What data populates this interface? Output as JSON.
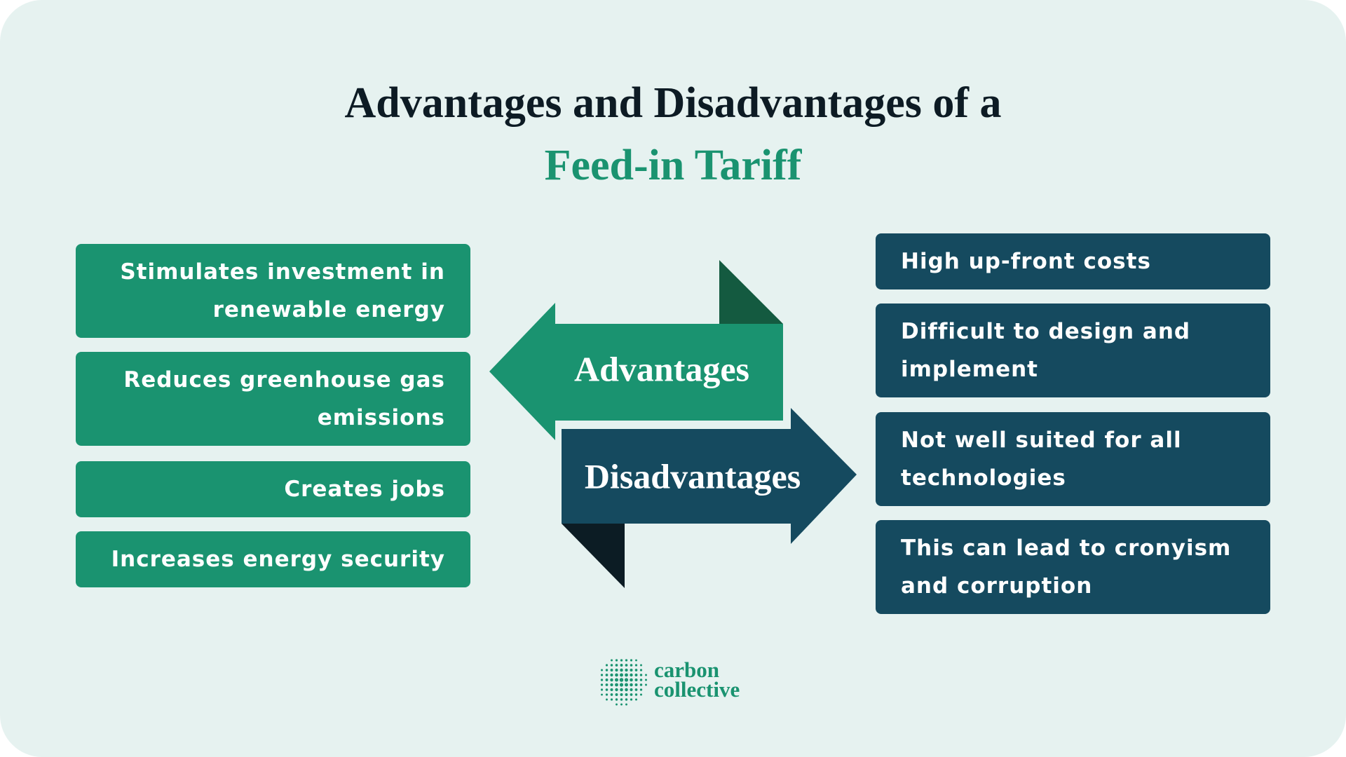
{
  "header": {
    "title": "Advantages and Disadvantages of a",
    "subtitle": "Feed-in Tariff"
  },
  "advantages": {
    "label": "Advantages",
    "items": [
      "Stimulates investment in renewable energy",
      "Reduces greenhouse gas emissions",
      "Creates jobs",
      "Increases energy security"
    ]
  },
  "disadvantages": {
    "label": "Disadvantages",
    "items": [
      "High up-front costs",
      "Difficult to design and implement",
      "Not well suited for all technologies",
      "This can lead to cronyism and corruption"
    ]
  },
  "logo": {
    "line1": "carbon",
    "line2": "collective"
  }
}
